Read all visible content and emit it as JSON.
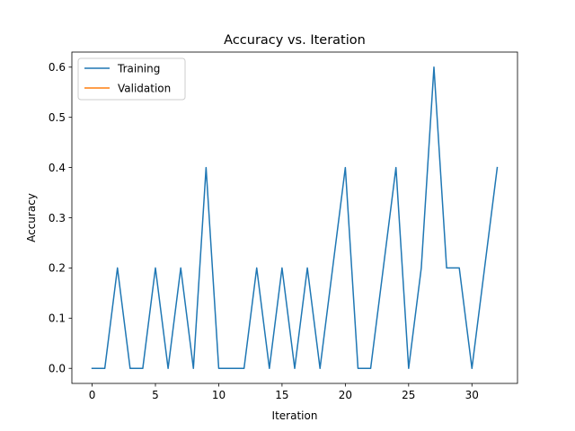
{
  "chart_data": {
    "type": "line",
    "title": "Accuracy vs. Iteration",
    "xlabel": "Iteration",
    "ylabel": "Accuracy",
    "xlim": [
      -1.6,
      33.6
    ],
    "ylim": [
      -0.03,
      0.63
    ],
    "xticks": [
      0,
      5,
      10,
      15,
      20,
      25,
      30
    ],
    "yticks": [
      0.0,
      0.1,
      0.2,
      0.3,
      0.4,
      0.5,
      0.6
    ],
    "ytick_labels": [
      "0.0",
      "0.1",
      "0.2",
      "0.3",
      "0.4",
      "0.5",
      "0.6"
    ],
    "grid": false,
    "legend_position": "top-left",
    "series": [
      {
        "name": "Training",
        "color": "#1f77b4",
        "x": [
          0,
          1,
          2,
          3,
          4,
          5,
          6,
          7,
          8,
          9,
          10,
          11,
          12,
          13,
          14,
          15,
          16,
          17,
          18,
          19,
          20,
          21,
          22,
          23,
          24,
          25,
          26,
          27,
          28,
          29,
          30,
          31,
          32
        ],
        "values": [
          0.0,
          0.0,
          0.2,
          0.0,
          0.0,
          0.2,
          0.0,
          0.2,
          0.0,
          0.4,
          0.0,
          0.0,
          0.0,
          0.2,
          0.0,
          0.2,
          0.0,
          0.2,
          0.0,
          0.2,
          0.4,
          0.0,
          0.0,
          0.2,
          0.4,
          0.0,
          0.2,
          0.6,
          0.2,
          0.2,
          0.0,
          0.2,
          0.4
        ]
      },
      {
        "name": "Validation",
        "color": "#ff7f0e",
        "x": [],
        "values": []
      }
    ]
  }
}
